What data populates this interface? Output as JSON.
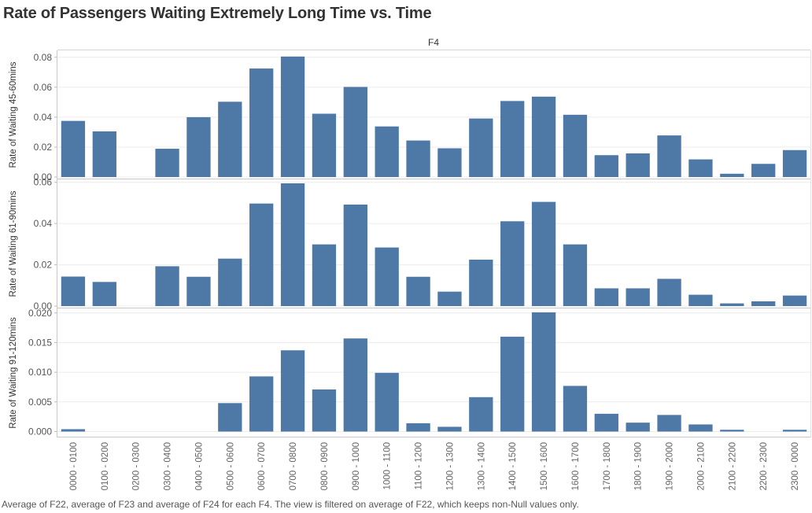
{
  "title": "Rate of Passengers Waiting Extremely Long Time vs. Time",
  "footer": "Average of F22, average of F23 and average of F24 for each F4. The view is filtered on average of F22, which keeps non-Null values only.",
  "chart_data": {
    "type": "bar",
    "column_header": "F4",
    "bar_color": "#4e79a7",
    "categories": [
      "0000 - 0100",
      "0100 - 0200",
      "0200 - 0300",
      "0300 - 0400",
      "0400 - 0500",
      "0500 - 0600",
      "0600 - 0700",
      "0700 - 0800",
      "0800 - 0900",
      "0900 - 1000",
      "1000 - 1100",
      "1100 - 1200",
      "1200 - 1300",
      "1300 - 1400",
      "1400 - 1500",
      "1500 - 1600",
      "1600 - 1700",
      "1700 - 1800",
      "1800 - 1900",
      "1900 - 2000",
      "2000 - 2100",
      "2100 - 2200",
      "2200 - 2300",
      "2300 - 0000"
    ],
    "panels": [
      {
        "ylabel": "Rate of Waiting 45-60mins",
        "ylim": [
          0,
          0.082
        ],
        "ticks": [
          0.0,
          0.02,
          0.04,
          0.06,
          0.08
        ],
        "tick_labels": [
          "0.00",
          "0.02",
          "0.04",
          "0.06",
          "0.08"
        ],
        "values": [
          0.0375,
          0.0305,
          0.0,
          0.0189,
          0.04,
          0.0503,
          0.0725,
          0.0805,
          0.0423,
          0.0602,
          0.0338,
          0.0244,
          0.0192,
          0.0391,
          0.0508,
          0.0537,
          0.0416,
          0.0146,
          0.0158,
          0.0278,
          0.0118,
          0.0022,
          0.0088,
          0.018
        ]
      },
      {
        "ylabel": "Rate of Waiting 61-90mins",
        "ylim": [
          0,
          0.0595
        ],
        "ticks": [
          0.0,
          0.02,
          0.04,
          0.06
        ],
        "tick_labels": [
          "0.00",
          "0.02",
          "0.04",
          "0.06"
        ],
        "values": [
          0.0143,
          0.0117,
          0.0,
          0.0193,
          0.0142,
          0.023,
          0.0497,
          0.0595,
          0.0299,
          0.0492,
          0.0284,
          0.0142,
          0.007,
          0.0225,
          0.0411,
          0.0505,
          0.0299,
          0.0086,
          0.0086,
          0.0132,
          0.0055,
          0.0013,
          0.0023,
          0.0051
        ]
      },
      {
        "ylabel": "Rate of Waiting 91-120mins",
        "ylim": [
          -0.0006,
          0.0201
        ],
        "ticks": [
          0.0,
          0.005,
          0.01,
          0.015,
          0.02
        ],
        "tick_labels": [
          "0.000",
          "0.005",
          "0.010",
          "0.015",
          "0.020"
        ],
        "values": [
          0.0004,
          0.0,
          0.0,
          0.0,
          0.0,
          0.0048,
          0.0093,
          0.0137,
          0.0071,
          0.0157,
          0.0099,
          0.0014,
          0.0008,
          0.0058,
          0.016,
          0.0201,
          0.0077,
          0.003,
          0.0015,
          0.0028,
          0.0012,
          0.0003,
          0.0,
          0.0003
        ]
      }
    ]
  }
}
